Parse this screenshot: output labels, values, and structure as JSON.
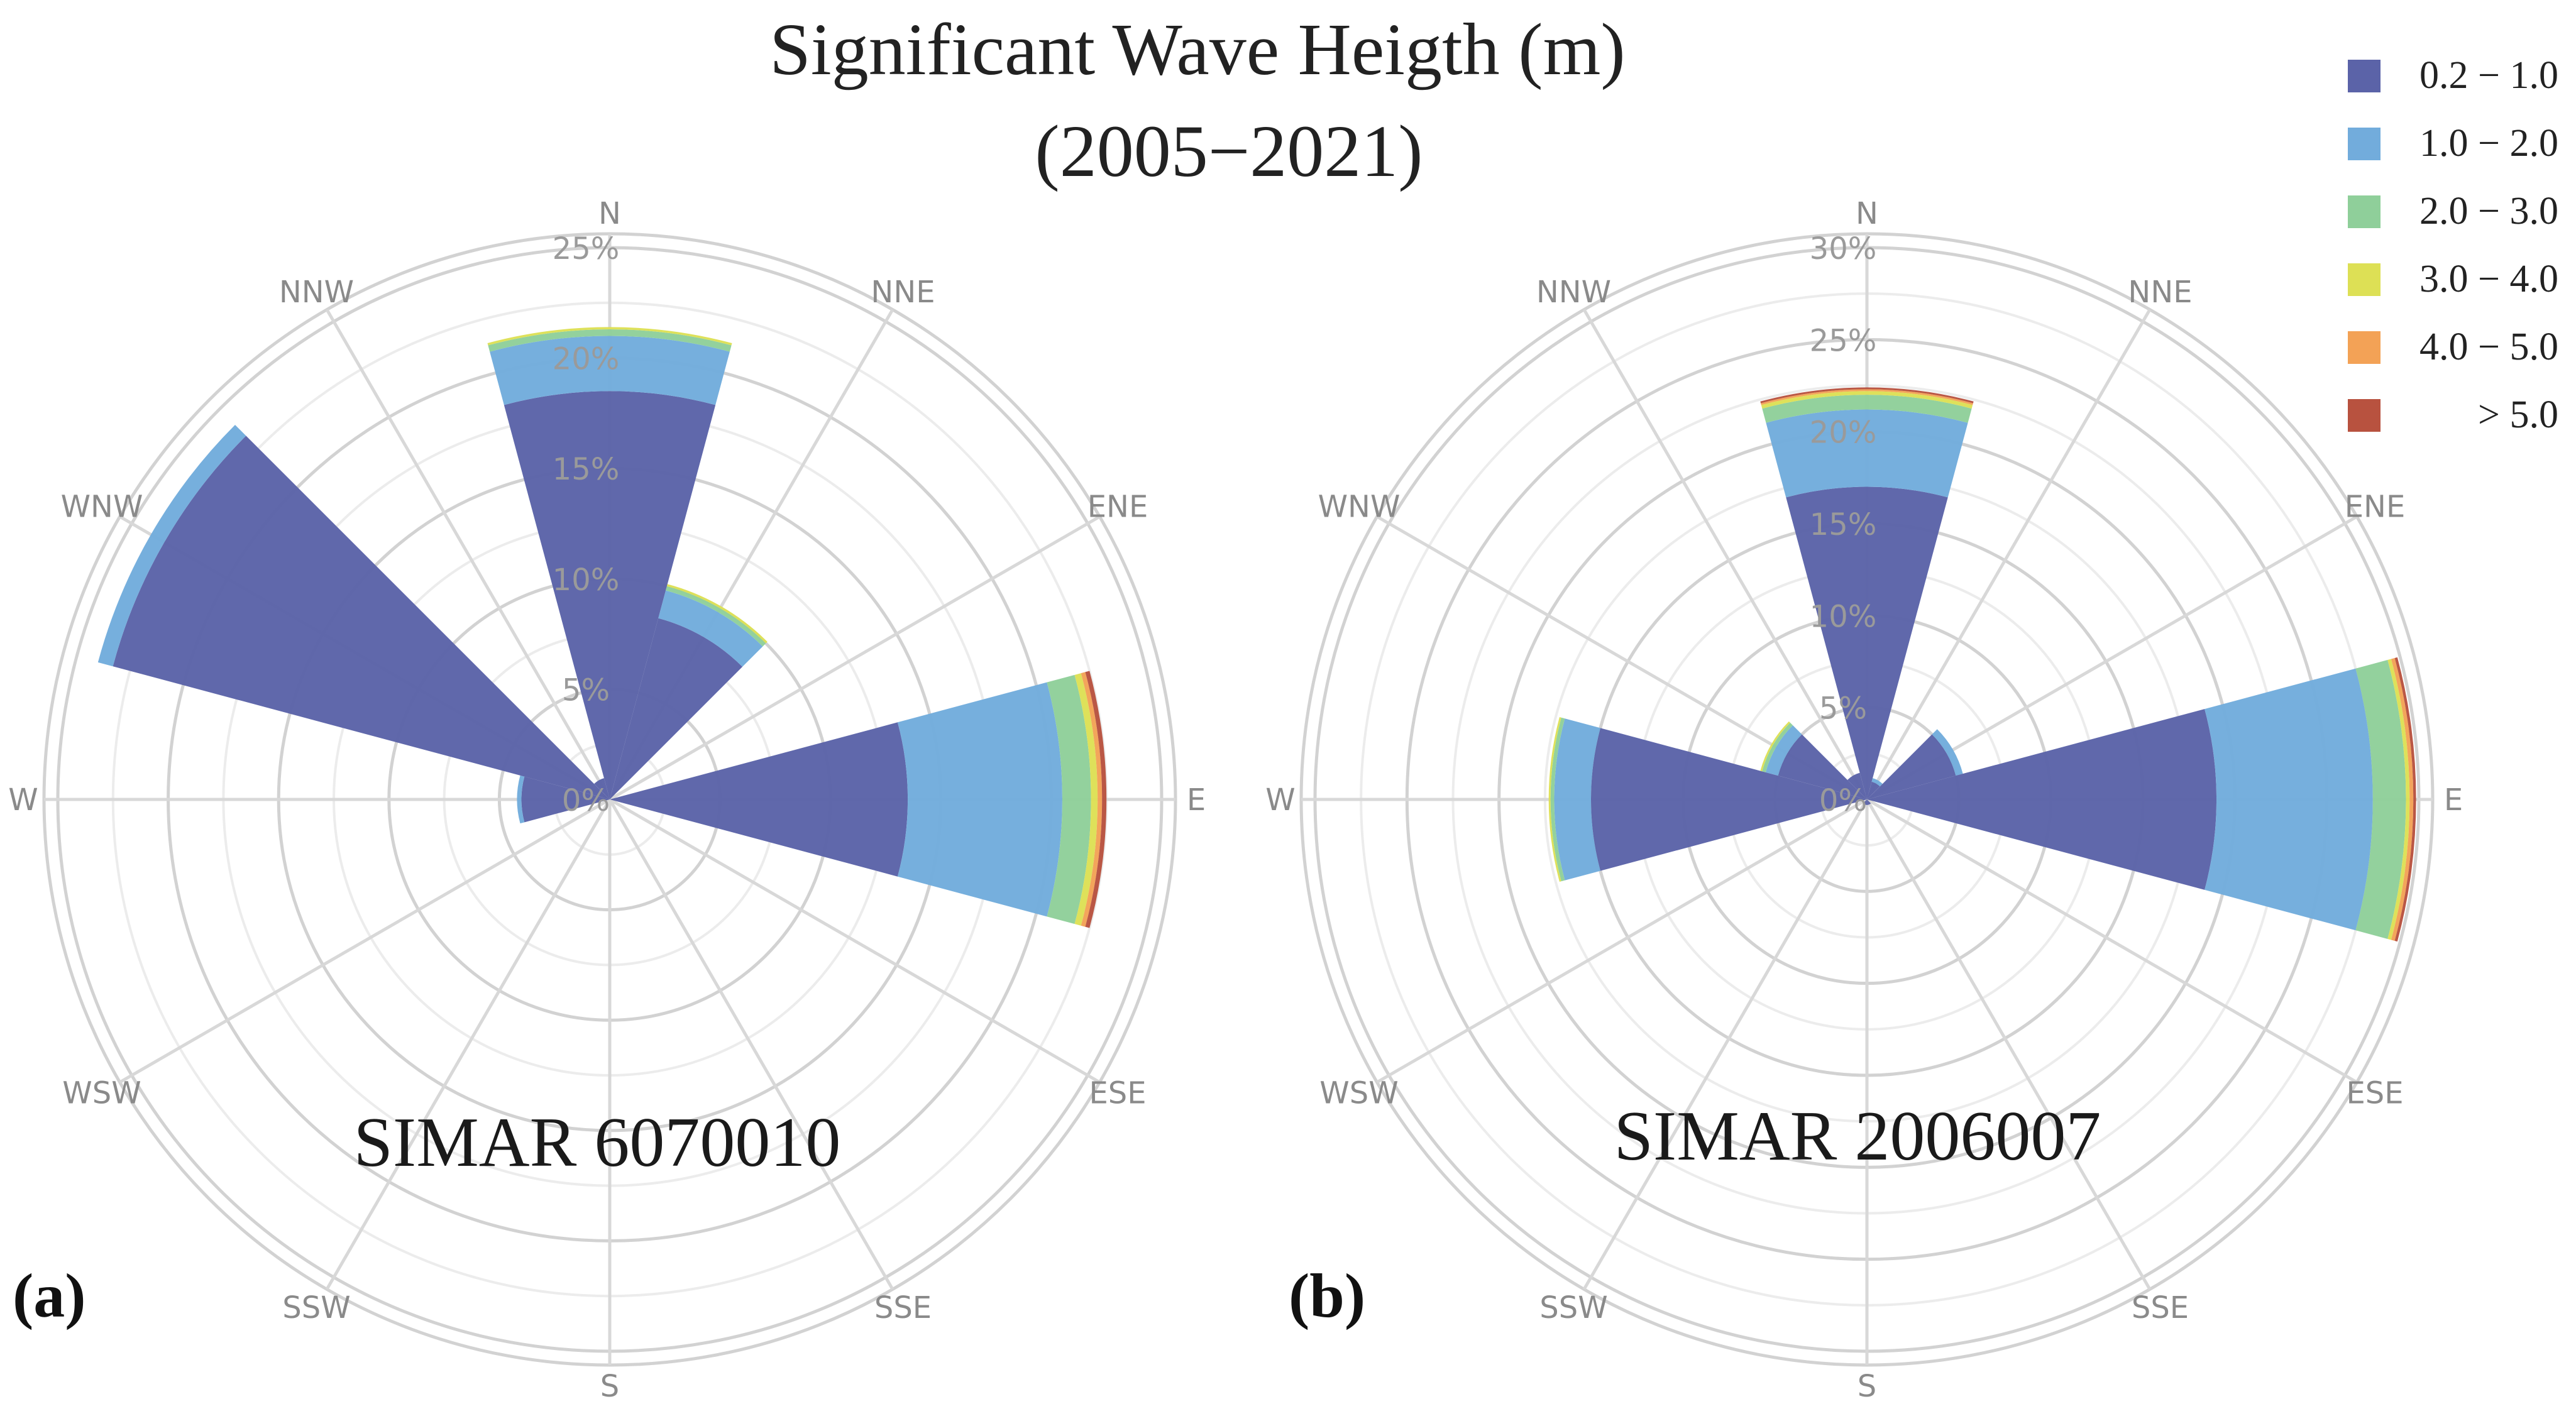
{
  "figure": {
    "title_line1": "Significant Wave Heigth (m)",
    "title_line2": "(2005−2021)"
  },
  "legend": {
    "items": [
      {
        "label": "0.2 − 1.0",
        "color": "#5b63a8"
      },
      {
        "label": "1.0 − 2.0",
        "color": "#72acdc"
      },
      {
        "label": "2.0 − 3.0",
        "color": "#8fcf9a"
      },
      {
        "label": "3.0 − 4.0",
        "color": "#dde055"
      },
      {
        "label": "4.0 − 5.0",
        "color": "#f3a256"
      },
      {
        "label": "> 5.0",
        "color": "#b8523f"
      }
    ]
  },
  "chart_data": [
    {
      "type": "windrose",
      "panel_label": "(a)",
      "station_label": "SIMAR 6070010",
      "directions": [
        "N",
        "NNE",
        "ENE",
        "E",
        "ESE",
        "SSE",
        "S",
        "SSW",
        "WSW",
        "W",
        "WNW",
        "NNW"
      ],
      "radial_ticks": [
        "0%",
        "5%",
        "10%",
        "15%",
        "20%",
        "25%"
      ],
      "rmax": 25,
      "series": [
        {
          "name": "0.2 − 1.0",
          "values": [
            18.5,
            8.5,
            0,
            13.5,
            0,
            0,
            0,
            0,
            0,
            4.0,
            23.3,
            1.0
          ]
        },
        {
          "name": "1.0 − 2.0",
          "values": [
            2.5,
            1.3,
            0,
            7.0,
            0,
            0,
            0,
            0,
            0,
            0.2,
            0.7,
            0
          ]
        },
        {
          "name": "2.0 − 3.0",
          "values": [
            0.3,
            0.2,
            0,
            1.3,
            0,
            0,
            0,
            0,
            0,
            0,
            0,
            0
          ]
        },
        {
          "name": "3.0 − 4.0",
          "values": [
            0.1,
            0.1,
            0,
            0.3,
            0,
            0,
            0,
            0,
            0,
            0,
            0,
            0
          ]
        },
        {
          "name": "4.0 − 5.0",
          "values": [
            0,
            0,
            0,
            0.2,
            0,
            0,
            0,
            0,
            0,
            0,
            0,
            0
          ]
        },
        {
          "name": "> 5.0",
          "values": [
            0,
            0,
            0,
            0.2,
            0,
            0,
            0,
            0,
            0,
            0,
            0,
            0
          ]
        }
      ]
    },
    {
      "type": "windrose",
      "panel_label": "(b)",
      "station_label": "SIMAR 2006007",
      "directions": [
        "N",
        "NNE",
        "ENE",
        "E",
        "ESE",
        "SSE",
        "S",
        "SSW",
        "WSW",
        "W",
        "WNW",
        "NNW"
      ],
      "radial_ticks": [
        "0%",
        "5%",
        "10%",
        "15%",
        "20%",
        "25%",
        "30%"
      ],
      "rmax": 30,
      "series": [
        {
          "name": "0.2 − 1.0",
          "values": [
            17.0,
            1.0,
            5.0,
            19.0,
            0,
            0.3,
            0.3,
            0.3,
            0,
            15.0,
            5.0,
            1.5
          ]
        },
        {
          "name": "1.0 − 2.0",
          "values": [
            4.2,
            0.2,
            0.4,
            8.5,
            0,
            0,
            0,
            0,
            0,
            2.0,
            0.7,
            0
          ]
        },
        {
          "name": "2.0 − 3.0",
          "values": [
            0.8,
            0,
            0,
            1.8,
            0,
            0,
            0,
            0,
            0,
            0.2,
            0.2,
            0
          ]
        },
        {
          "name": "3.0 − 4.0",
          "values": [
            0.2,
            0,
            0,
            0.2,
            0,
            0,
            0,
            0,
            0,
            0.1,
            0.1,
            0
          ]
        },
        {
          "name": "4.0 − 5.0",
          "values": [
            0.1,
            0,
            0,
            0.2,
            0,
            0,
            0,
            0,
            0,
            0,
            0,
            0
          ]
        },
        {
          "name": "> 5.0",
          "values": [
            0.1,
            0,
            0,
            0.15,
            0,
            0,
            0,
            0,
            0,
            0,
            0,
            0
          ]
        }
      ]
    }
  ]
}
